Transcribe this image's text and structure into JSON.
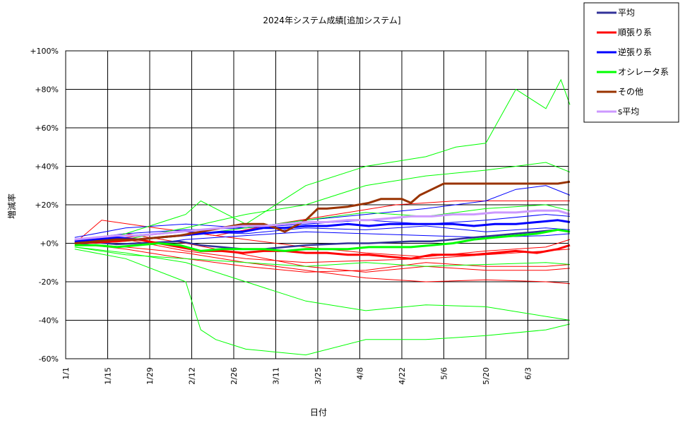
{
  "chart_data": {
    "type": "line",
    "title": "2024年システム成績[追加システム]",
    "xlabel": "日付",
    "ylabel": "増減率",
    "x_ticks": [
      "1/1",
      "1/15",
      "1/29",
      "2/12",
      "2/26",
      "3/11",
      "3/25",
      "4/8",
      "4/22",
      "5/6",
      "5/20",
      "6/3"
    ],
    "y_ticks": [
      "+100%",
      "+80%",
      "+60%",
      "+40%",
      "+20%",
      "+0%",
      "-20%",
      "-40%",
      "-60%"
    ],
    "ylim": [
      -60,
      100
    ],
    "x_range_days": [
      0,
      168
    ],
    "grid": true,
    "legend_position": "top-right",
    "legend": [
      {
        "name": "平均",
        "color": "#333399"
      },
      {
        "name": "順張り系",
        "color": "#ff0000"
      },
      {
        "name": "逆張り系",
        "color": "#0000ff"
      },
      {
        "name": "オシレータ系",
        "color": "#00ff00"
      },
      {
        "name": "その他",
        "color": "#993300"
      },
      {
        "name": "s平均",
        "color": "#cc99ff"
      }
    ],
    "series": [
      {
        "name": "平均",
        "color": "#333399",
        "width": 2.5,
        "x": [
          3,
          10,
          17,
          24,
          31,
          38,
          45,
          52,
          59,
          66,
          73,
          80,
          87,
          94,
          101,
          108,
          115,
          122,
          129,
          136,
          143,
          150,
          157,
          164,
          168
        ],
        "y": [
          0,
          0.5,
          -0.5,
          0,
          0.5,
          1,
          -1,
          -2,
          -3,
          -3,
          -2,
          -1,
          -0.5,
          0,
          0,
          0.5,
          1,
          1,
          2,
          3,
          4,
          5,
          6,
          7,
          6
        ]
      },
      {
        "name": "順張り系",
        "color": "#ff0000",
        "width": 3,
        "x": [
          3,
          10,
          17,
          24,
          31,
          38,
          45,
          52,
          59,
          66,
          73,
          80,
          87,
          94,
          101,
          108,
          115,
          122,
          129,
          136,
          143,
          150,
          157,
          164,
          168
        ],
        "y": [
          0,
          0.5,
          1,
          2,
          0,
          -2,
          -4,
          -4,
          -5,
          -4,
          -4,
          -5,
          -5,
          -6,
          -6,
          -7,
          -8,
          -6,
          -6,
          -6,
          -5,
          -4,
          -5,
          -3,
          -1
        ]
      },
      {
        "name": "逆張り系",
        "color": "#0000ff",
        "width": 3,
        "x": [
          3,
          10,
          17,
          24,
          31,
          38,
          45,
          52,
          59,
          66,
          73,
          80,
          87,
          94,
          101,
          108,
          115,
          122,
          129,
          136,
          143,
          150,
          157,
          164,
          168
        ],
        "y": [
          1,
          2,
          3,
          2,
          3,
          4,
          5,
          6,
          6,
          8,
          8,
          9,
          9,
          10,
          9,
          10,
          10,
          10,
          10,
          9,
          10,
          10,
          11,
          12,
          11
        ]
      },
      {
        "name": "オシレータ系",
        "color": "#00ff00",
        "width": 3,
        "x": [
          3,
          10,
          17,
          24,
          31,
          38,
          45,
          52,
          59,
          66,
          73,
          80,
          87,
          94,
          101,
          108,
          115,
          122,
          129,
          136,
          143,
          150,
          157,
          164,
          168
        ],
        "y": [
          -1,
          -1,
          -2,
          -1,
          0,
          -1,
          -4,
          -3,
          -3,
          -3,
          -4,
          -3,
          -3,
          -3,
          -2,
          -2,
          -2,
          -1,
          0,
          2,
          3,
          4,
          5,
          7,
          6
        ]
      },
      {
        "name": "その他",
        "color": "#993300",
        "width": 3,
        "x": [
          3,
          10,
          17,
          24,
          31,
          38,
          45,
          52,
          59,
          66,
          70,
          73,
          80,
          84,
          87,
          94,
          101,
          105,
          108,
          112,
          115,
          118,
          122,
          126,
          129,
          136,
          143,
          150,
          157,
          164,
          168
        ],
        "y": [
          0,
          1,
          2,
          2,
          3,
          4,
          6,
          8,
          10,
          10,
          8,
          6,
          12,
          18,
          18,
          19,
          21,
          23,
          23,
          23,
          21,
          25,
          28,
          31,
          31,
          31,
          31,
          31,
          31,
          31,
          32
        ]
      },
      {
        "name": "s平均",
        "color": "#cc99ff",
        "width": 3,
        "x": [
          3,
          10,
          17,
          24,
          31,
          38,
          45,
          52,
          59,
          66,
          73,
          80,
          87,
          94,
          101,
          108,
          115,
          122,
          129,
          136,
          143,
          150,
          157,
          164,
          168
        ],
        "y": [
          2,
          3,
          4,
          4,
          5,
          6,
          7,
          8,
          9,
          9,
          10,
          11,
          11,
          12,
          12,
          13,
          14,
          14,
          15,
          15,
          16,
          16,
          17,
          17,
          15
        ]
      }
    ],
    "thin_series": [
      {
        "color": "#ff0000",
        "x": [
          3,
          20,
          40,
          60,
          80,
          100,
          120,
          140,
          160,
          168
        ],
        "y": [
          0,
          2,
          -4,
          -8,
          -10,
          -9,
          -8,
          -6,
          -4,
          -3
        ]
      },
      {
        "color": "#ff0000",
        "x": [
          3,
          20,
          40,
          60,
          80,
          100,
          120,
          140,
          160,
          168
        ],
        "y": [
          1,
          5,
          0,
          -6,
          -12,
          -15,
          -12,
          -14,
          -14,
          -13
        ]
      },
      {
        "color": "#ff0000",
        "x": [
          3,
          20,
          40,
          60,
          80,
          100,
          120,
          140,
          160,
          168
        ],
        "y": [
          0,
          -2,
          -5,
          -10,
          -14,
          -18,
          -20,
          -19,
          -20,
          -21
        ]
      },
      {
        "color": "#ff0000",
        "x": [
          3,
          12,
          30,
          50,
          70,
          90,
          110,
          130,
          150,
          168
        ],
        "y": [
          0,
          12,
          8,
          4,
          10,
          15,
          20,
          22,
          22,
          22
        ]
      },
      {
        "color": "#ff0000",
        "x": [
          3,
          20,
          40,
          60,
          80,
          100,
          120,
          140,
          160,
          168
        ],
        "y": [
          0,
          3,
          6,
          2,
          -2,
          -5,
          -7,
          -4,
          -2,
          2
        ]
      },
      {
        "color": "#ff0000",
        "x": [
          3,
          20,
          40,
          60,
          80,
          100,
          120,
          140,
          160,
          168
        ],
        "y": [
          0,
          -3,
          -8,
          -12,
          -15,
          -14,
          -10,
          -12,
          -12,
          -11
        ]
      },
      {
        "color": "#0000ff",
        "x": [
          3,
          20,
          40,
          60,
          80,
          100,
          120,
          140,
          150,
          160,
          168
        ],
        "y": [
          3,
          8,
          10,
          8,
          12,
          15,
          18,
          22,
          28,
          30,
          25
        ]
      },
      {
        "color": "#0000ff",
        "x": [
          3,
          20,
          40,
          60,
          80,
          100,
          120,
          140,
          160,
          168
        ],
        "y": [
          2,
          5,
          7,
          8,
          10,
          12,
          10,
          12,
          15,
          14
        ]
      },
      {
        "color": "#0000ff",
        "x": [
          3,
          20,
          40,
          60,
          80,
          100,
          120,
          140,
          160,
          168
        ],
        "y": [
          0,
          -2,
          2,
          4,
          6,
          5,
          4,
          3,
          4,
          5
        ]
      },
      {
        "color": "#0000ff",
        "x": [
          3,
          20,
          40,
          60,
          80,
          100,
          120,
          140,
          160,
          168
        ],
        "y": [
          1,
          4,
          6,
          5,
          8,
          7,
          9,
          6,
          8,
          7
        ]
      },
      {
        "color": "#00ff00",
        "x": [
          3,
          20,
          40,
          45,
          60,
          80,
          100,
          120,
          130,
          140,
          150,
          160,
          165,
          168
        ],
        "y": [
          -1,
          5,
          15,
          22,
          10,
          30,
          40,
          45,
          50,
          52,
          80,
          70,
          85,
          72
        ]
      },
      {
        "color": "#00ff00",
        "x": [
          3,
          20,
          40,
          45,
          50,
          60,
          80,
          100,
          120,
          140,
          160,
          168
        ],
        "y": [
          -3,
          -8,
          -20,
          -45,
          -50,
          -55,
          -58,
          -50,
          -50,
          -48,
          -45,
          -42
        ]
      },
      {
        "color": "#00ff00",
        "x": [
          3,
          20,
          40,
          60,
          80,
          100,
          120,
          140,
          160,
          168
        ],
        "y": [
          -2,
          -5,
          -10,
          -20,
          -30,
          -35,
          -32,
          -33,
          -38,
          -40
        ]
      },
      {
        "color": "#00ff00",
        "x": [
          3,
          20,
          40,
          60,
          80,
          100,
          120,
          140,
          160,
          168
        ],
        "y": [
          0,
          2,
          8,
          15,
          20,
          30,
          35,
          38,
          42,
          37
        ]
      },
      {
        "color": "#00ff00",
        "x": [
          3,
          20,
          40,
          60,
          80,
          100,
          120,
          140,
          160,
          168
        ],
        "y": [
          -2,
          -6,
          -8,
          -10,
          -12,
          -10,
          -12,
          -11,
          -10,
          -11
        ]
      },
      {
        "color": "#00ff00",
        "x": [
          3,
          20,
          40,
          60,
          80,
          100,
          120,
          140,
          160,
          168
        ],
        "y": [
          0,
          1,
          4,
          8,
          12,
          16,
          14,
          18,
          20,
          17
        ]
      }
    ]
  }
}
